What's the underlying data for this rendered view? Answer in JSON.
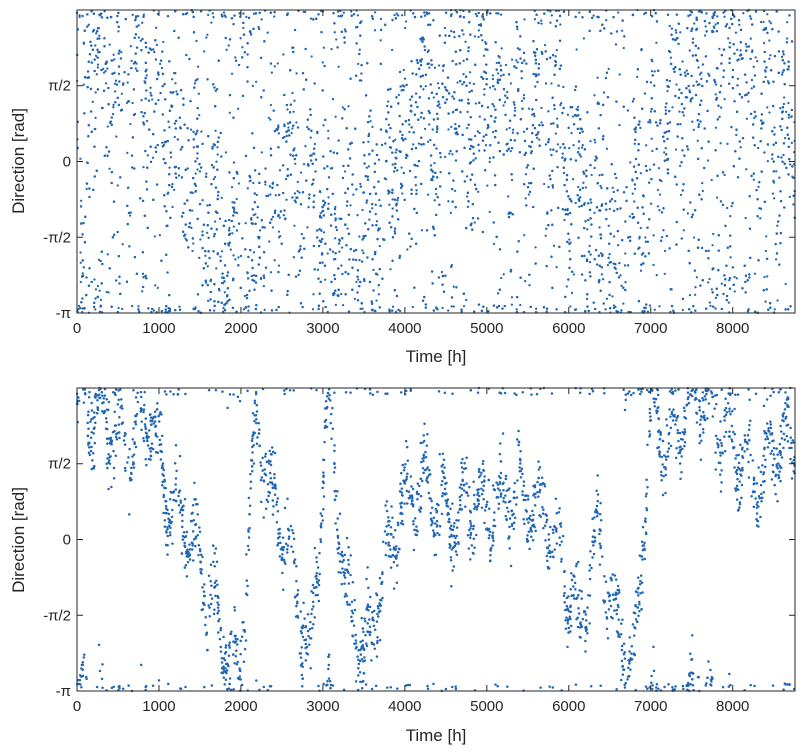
{
  "chart_data": [
    {
      "type": "scatter",
      "xlabel": "Time [h]",
      "ylabel": "Direction [rad]",
      "xlim": [
        0,
        8760
      ],
      "ylim": [
        -3.14159,
        3.14159
      ],
      "xticks": [
        0,
        1000,
        2000,
        3000,
        4000,
        5000,
        6000,
        7000,
        8000
      ],
      "xtick_labels": [
        "0",
        "1000",
        "2000",
        "3000",
        "4000",
        "5000",
        "6000",
        "7000",
        "8000"
      ],
      "yticks": [
        -3.14159,
        -1.5708,
        0,
        1.5708
      ],
      "ytick_labels": [
        "-π",
        "-π/2",
        "0",
        "π/2"
      ],
      "marker_color": "#1f66b3",
      "grid": false,
      "density": "dense",
      "series": [
        {
          "centers": [
            2.8,
            2.2,
            1.6,
            1.4,
            2.5,
            0.8,
            -0.2,
            -0.9,
            -1.6,
            -2.3,
            -2.6,
            -0.4,
            0.2,
            -0.8,
            -1.4,
            -2.0,
            -1.8,
            -0.9,
            0.4,
            1.2,
            1.4,
            1.3,
            1.1,
            1.2,
            1.3,
            1.2,
            1.0,
            0.6,
            -0.5,
            -1.5,
            -2.2,
            -1.0,
            -0.2,
            0.8,
            1.8,
            2.4,
            2.9,
            2.2,
            1.4,
            0.5
          ],
          "segment_hours": 219
        }
      ]
    },
    {
      "type": "scatter",
      "xlabel": "Time [h]",
      "ylabel": "Direction [rad]",
      "xlim": [
        0,
        8760
      ],
      "ylim": [
        -3.14159,
        3.14159
      ],
      "xticks": [
        0,
        1000,
        2000,
        3000,
        4000,
        5000,
        6000,
        7000,
        8000
      ],
      "xtick_labels": [
        "0",
        "1000",
        "2000",
        "3000",
        "4000",
        "5000",
        "6000",
        "7000",
        "8000"
      ],
      "yticks": [
        -3.14159,
        -1.5708,
        0,
        1.5708
      ],
      "ytick_labels": [
        "-π",
        "-π/2",
        "0",
        "π/2"
      ],
      "marker_color": "#1f66b3",
      "grid": false,
      "density": "sparse",
      "series": [
        {
          "centers": [
            3.0,
            2.6,
            2.4,
            1.8,
            2.8,
            1.0,
            0.4,
            -0.6,
            -1.8,
            -2.9,
            2.5,
            0.6,
            -0.4,
            -2.6,
            2.9,
            -1.2,
            -2.4,
            -0.8,
            0.6,
            1.1,
            0.9,
            0.3,
            0.8,
            0.5,
            0.9,
            0.8,
            0.7,
            -0.4,
            -2.0,
            0.2,
            -1.6,
            -2.8,
            2.7,
            1.8,
            2.8,
            2.9,
            2.4,
            1.6,
            1.2,
            2.0
          ],
          "segment_hours": 219
        }
      ]
    }
  ]
}
